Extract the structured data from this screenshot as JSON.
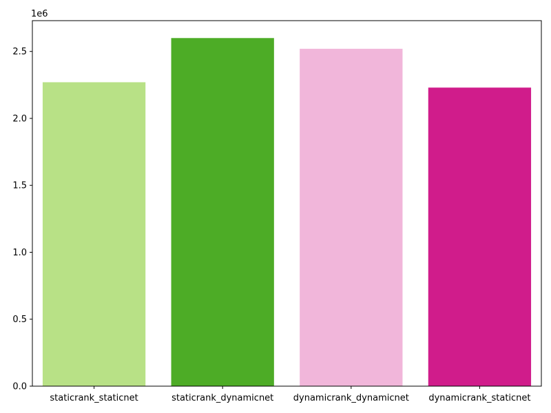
{
  "chart_data": {
    "type": "bar",
    "title": "",
    "xlabel": "",
    "ylabel": "",
    "y_offset_label": "1e6",
    "categories": [
      "staticrank_staticnet",
      "staticrank_dynamicnet",
      "dynamicrank_dynamicnet",
      "dynamicrank_staticnet"
    ],
    "values": [
      2270000,
      2600000,
      2520000,
      2230000
    ],
    "colors": [
      "#b8e186",
      "#4dac26",
      "#f1b6da",
      "#d01c8b"
    ],
    "ylim": [
      0,
      2730000
    ],
    "yticks": [
      0,
      500000,
      1000000,
      1500000,
      2000000,
      2500000
    ],
    "ytick_labels": [
      "0.0",
      "0.5",
      "1.0",
      "1.5",
      "2.0",
      "2.5"
    ],
    "grid": false
  }
}
